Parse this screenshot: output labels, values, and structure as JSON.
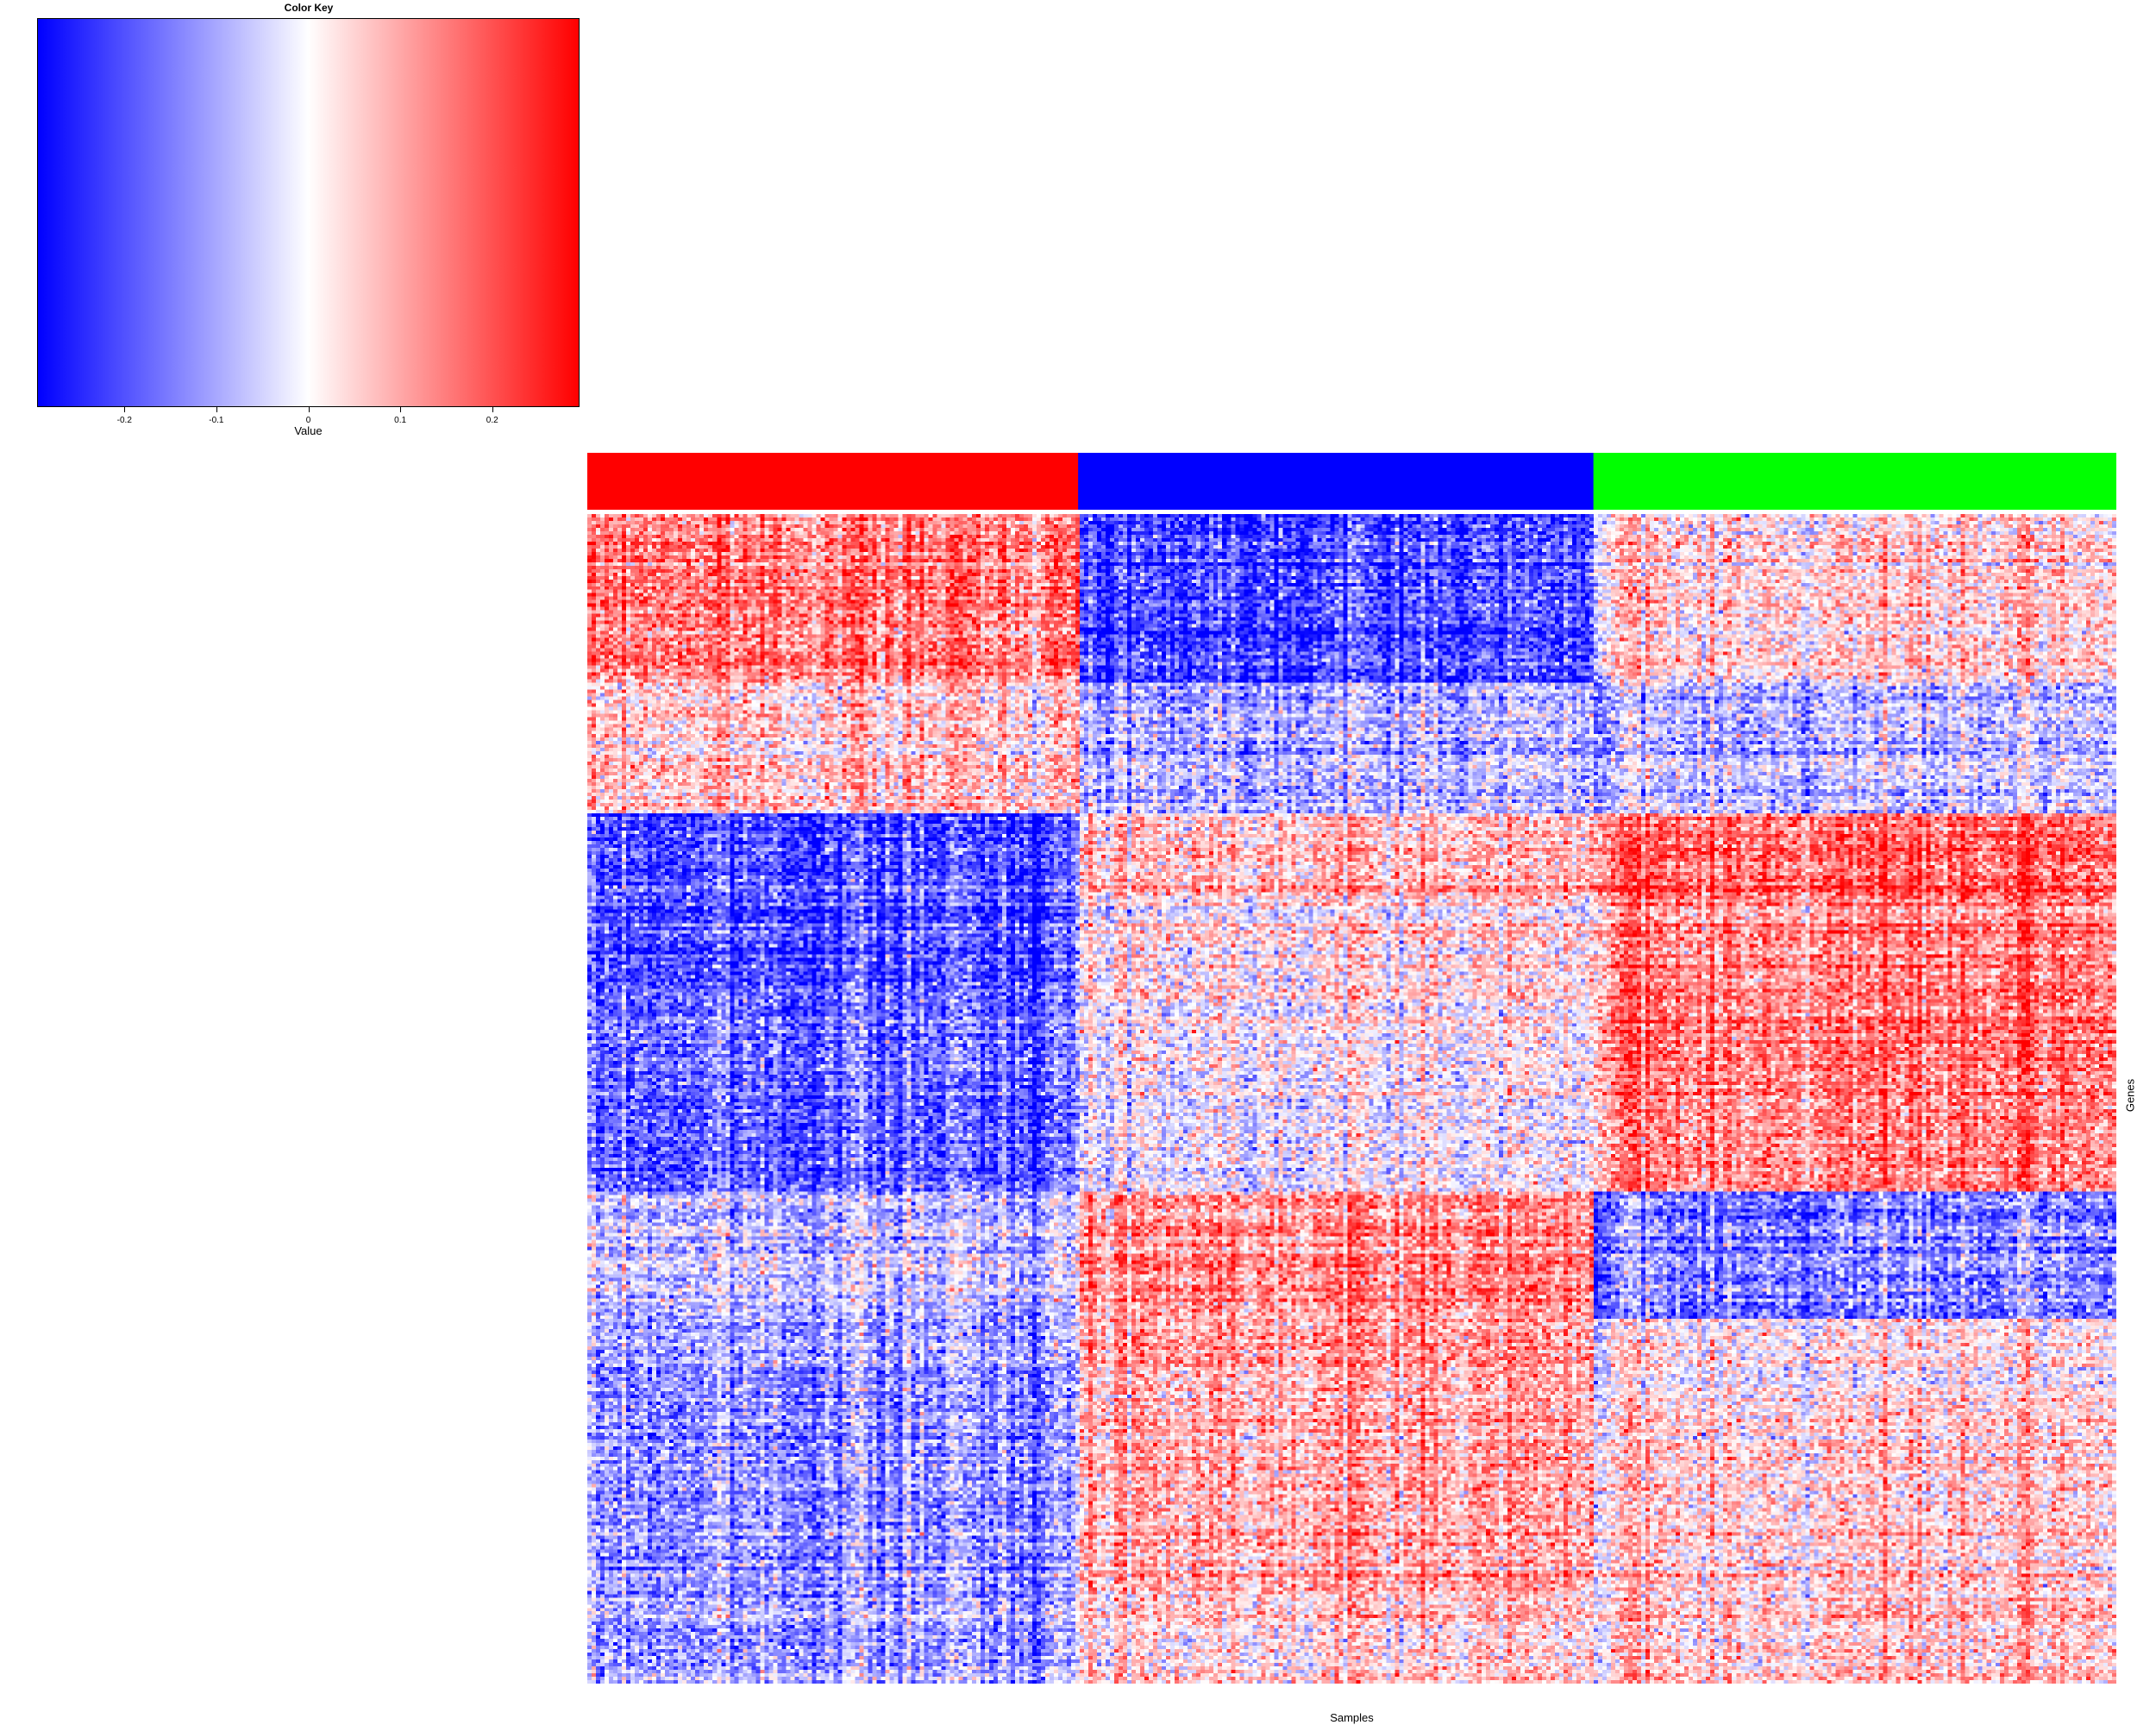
{
  "color_key": {
    "title": "Color Key",
    "xlabel": "Value",
    "ticks": [
      {
        "value": -0.2,
        "label": "-0.2"
      },
      {
        "value": -0.1,
        "label": "-0.1"
      },
      {
        "value": 0,
        "label": "0"
      },
      {
        "value": 0.1,
        "label": "0.1"
      },
      {
        "value": 0.2,
        "label": "0.2"
      }
    ],
    "range": [
      -0.295,
      0.295
    ],
    "low_color": "#0000ff",
    "mid_color": "#ffffff",
    "high_color": "#ff0000"
  },
  "chart_data": {
    "type": "heatmap",
    "xlabel": "Samples",
    "ylabel": "Genes",
    "sample_groups": [
      {
        "color": "#ff0000",
        "fraction": 0.321
      },
      {
        "color": "#0000ff",
        "fraction": 0.337
      },
      {
        "color": "#00ff00",
        "fraction": 0.342
      }
    ],
    "gene_blocks": [
      {
        "fraction": 0.143,
        "group_means": [
          0.16,
          -0.2,
          0.05
        ]
      },
      {
        "fraction": 0.112,
        "group_means": [
          0.06,
          -0.08,
          -0.07
        ]
      },
      {
        "fraction": 0.07,
        "group_means": [
          -0.2,
          0.08,
          0.18
        ]
      },
      {
        "fraction": 0.091,
        "group_means": [
          -0.2,
          0.03,
          0.14
        ]
      },
      {
        "fraction": 0.163,
        "group_means": [
          -0.17,
          0.0,
          0.15
        ]
      },
      {
        "fraction": 0.109,
        "group_means": [
          -0.06,
          0.14,
          -0.14
        ]
      },
      {
        "fraction": 0.062,
        "group_means": [
          -0.1,
          0.12,
          0.02
        ]
      },
      {
        "fraction": 0.175,
        "group_means": [
          -0.12,
          0.1,
          0.05
        ]
      },
      {
        "fraction": 0.075,
        "group_means": [
          -0.09,
          0.06,
          0.07
        ]
      }
    ],
    "value_range": [
      -0.295,
      0.295
    ]
  }
}
